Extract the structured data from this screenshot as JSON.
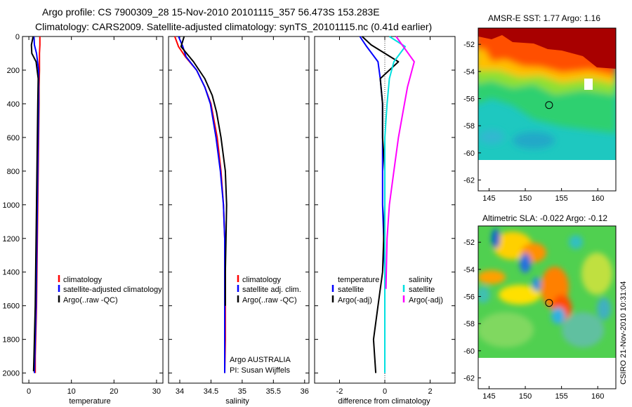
{
  "title": {
    "line1": "Argo profile: CS 7900309_28 15-Nov-2010 20101115_357 56.473S 153.283E",
    "line2": "Climatology: CARS2009. Satellite-adjusted climatology: synTS_20101115.nc (0.41d earlier)"
  },
  "colors": {
    "climatology": "#ff0000",
    "satellite": "#0000ff",
    "argo": "#000000",
    "sal_sat": "#00e0e0",
    "sal_argo": "#ff00ff"
  },
  "chart_data": [
    {
      "type": "line",
      "name": "temperature-panel",
      "xlabel": "temperature",
      "ylabel": "",
      "xlim": [
        -1.5,
        31.5
      ],
      "ylim": [
        2060,
        0
      ],
      "xticks": [
        0,
        10,
        20,
        30
      ],
      "yticks": [
        0,
        200,
        400,
        600,
        800,
        1000,
        1200,
        1400,
        1600,
        1800,
        2000
      ],
      "legend": [
        "climatology",
        "satellite-adjusted climatology",
        "Argo(..raw -QC)"
      ],
      "series": [
        {
          "name": "climatology",
          "color": "#ff0000",
          "x": [
            2.6,
            2.6,
            2.5,
            2.5,
            2.4,
            2.4,
            2.3,
            2.2,
            2.1,
            2.0,
            1.9,
            1.8,
            1.7,
            1.6,
            1.5,
            1.5
          ],
          "y": [
            0,
            50,
            100,
            200,
            300,
            400,
            600,
            800,
            1000,
            1200,
            1400,
            1600,
            1700,
            1800,
            1900,
            2000
          ]
        },
        {
          "name": "satellite",
          "color": "#0000ff",
          "x": [
            1.2,
            1.3,
            1.8,
            2.3,
            2.3,
            2.3,
            2.2,
            2.1,
            2.0,
            1.9,
            1.8,
            1.7,
            1.6,
            1.5,
            1.4,
            1.3
          ],
          "y": [
            0,
            50,
            100,
            200,
            300,
            400,
            600,
            800,
            1000,
            1200,
            1400,
            1600,
            1700,
            1800,
            1900,
            2000
          ]
        },
        {
          "name": "Argo",
          "color": "#000000",
          "x": [
            1.0,
            0.6,
            0.7,
            1.7,
            2.2,
            2.1,
            2.0,
            1.9,
            1.8,
            1.7,
            1.6,
            1.5,
            1.3,
            1.2,
            1.1
          ],
          "y": [
            0,
            50,
            100,
            150,
            250,
            400,
            600,
            800,
            1000,
            1200,
            1400,
            1600,
            1800,
            1900,
            1990
          ]
        }
      ]
    },
    {
      "type": "line",
      "name": "salinity-panel",
      "xlabel": "salinity",
      "xlim": [
        33.82,
        36.07
      ],
      "ylim": [
        2060,
        0
      ],
      "xticks": [
        34,
        34.5,
        35,
        35.5,
        36
      ],
      "xticklabels": [
        "34",
        "34.5",
        "35",
        "35.5",
        "36"
      ],
      "legend": [
        "climatology",
        "satellite adj. clim.",
        "Argo(..raw -QC)"
      ],
      "annotation": [
        "Argo AUSTRALIA",
        "PI: Susan Wijffels"
      ],
      "series": [
        {
          "name": "climatology",
          "color": "#ff0000",
          "x": [
            33.92,
            33.98,
            34.09,
            34.27,
            34.4,
            34.5,
            34.6,
            34.66,
            34.7,
            34.72,
            34.73,
            34.73,
            34.73,
            34.72
          ],
          "y": [
            0,
            60,
            120,
            200,
            300,
            400,
            600,
            800,
            1000,
            1200,
            1400,
            1600,
            1800,
            2000
          ]
        },
        {
          "name": "satellite",
          "color": "#0000ff",
          "x": [
            33.98,
            34.05,
            34.1,
            34.27,
            34.4,
            34.49,
            34.58,
            34.65,
            34.7,
            34.72,
            34.72,
            34.72,
            34.72,
            34.72
          ],
          "y": [
            0,
            60,
            120,
            200,
            300,
            400,
            600,
            800,
            1000,
            1200,
            1400,
            1600,
            1800,
            2000
          ]
        },
        {
          "name": "Argo",
          "color": "#000000",
          "x": [
            34.07,
            34.02,
            34.22,
            34.4,
            34.52,
            34.59,
            34.66,
            34.73,
            34.75,
            34.74,
            34.73,
            34.73
          ],
          "y": [
            0,
            60,
            150,
            250,
            350,
            450,
            600,
            800,
            1000,
            1200,
            1400,
            1600
          ]
        }
      ]
    },
    {
      "type": "line",
      "name": "difference-panel",
      "xlabel": "difference from climatology",
      "xlim": [
        -3.1,
        3.1
      ],
      "ylim": [
        2060,
        0
      ],
      "xticks": [
        -2,
        0,
        2
      ],
      "legend_left_title": "temperature",
      "legend_left": [
        "satellite",
        "Argo(-adj)"
      ],
      "legend_right_title": "salinity",
      "legend_right": [
        "satellite",
        "Argo(-adj)"
      ],
      "series": [
        {
          "name": "temp satellite",
          "color": "#0000ff",
          "x": [
            -1.1,
            -0.8,
            -0.3,
            -0.2,
            -0.1,
            -0.1,
            -0.1,
            -0.1,
            0,
            0,
            0
          ],
          "y": [
            0,
            60,
            150,
            250,
            400,
            600,
            800,
            1000,
            1400,
            1800,
            2000
          ]
        },
        {
          "name": "temp Argo",
          "color": "#000000",
          "x": [
            -1.0,
            -0.6,
            0.6,
            -0.2,
            -0.1,
            -0.1,
            0,
            0,
            -0.1,
            -0.3,
            -0.5,
            -0.4
          ],
          "y": [
            0,
            50,
            150,
            250,
            400,
            600,
            800,
            1000,
            1400,
            1600,
            1800,
            2000
          ]
        },
        {
          "name": "sal satellite",
          "color": "#00e0e0",
          "x": [
            0.2,
            0.9,
            0.4,
            0.2,
            0.1,
            0,
            0,
            0,
            0
          ],
          "y": [
            0,
            60,
            150,
            250,
            400,
            600,
            1000,
            1500,
            2000
          ]
        },
        {
          "name": "sal Argo",
          "color": "#ff00ff",
          "x": [
            0.5,
            1.3,
            1.0,
            0.8,
            0.6,
            0.4,
            0.2,
            0.1,
            0.05
          ],
          "y": [
            0,
            150,
            300,
            450,
            600,
            800,
            1000,
            1200,
            1500
          ]
        }
      ]
    },
    {
      "type": "heatmap",
      "name": "sst-map",
      "title": "AMSR-E SST: 1.77 Argo: 1.16",
      "xlim": [
        143.5,
        162.5
      ],
      "ylim": [
        -62.8,
        -50.8
      ],
      "xticks": [
        145,
        150,
        155,
        160
      ],
      "yticks": [
        -52,
        -54,
        -56,
        -58,
        -60,
        -62
      ],
      "marker": {
        "lon": 153.283,
        "lat": -56.473
      }
    },
    {
      "type": "heatmap",
      "name": "sla-map",
      "title": "Altimetric SLA: -0.022 Argo: -0.12",
      "xlim": [
        143.5,
        162.5
      ],
      "ylim": [
        -62.8,
        -50.8
      ],
      "xticks": [
        145,
        150,
        155,
        160
      ],
      "yticks": [
        -52,
        -54,
        -56,
        -58,
        -60,
        -62
      ],
      "marker": {
        "lon": 153.283,
        "lat": -56.473
      }
    }
  ],
  "stamp": "CSIRO 21-Nov-2010 10:31:04"
}
